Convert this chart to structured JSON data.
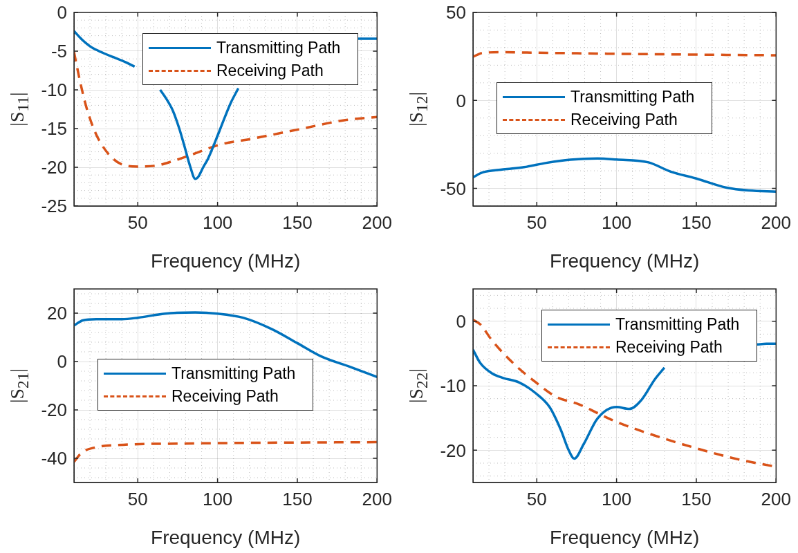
{
  "chart_data": [
    {
      "type": "line",
      "xlabel": "Frequency (MHz)",
      "ylabel": "|S$_{11}$|",
      "xlim": [
        10,
        200
      ],
      "xticks": [
        50,
        100,
        150,
        200
      ],
      "ylim": [
        -25,
        0
      ],
      "yticks": [
        -25,
        -20,
        -15,
        -10,
        -5,
        0
      ],
      "grid": true,
      "legend": "top",
      "series": [
        {
          "name": "Transmitting Path",
          "color": "#0072bd",
          "line_style": "solid",
          "x": [
            10,
            15,
            21,
            28,
            35,
            42,
            48,
            57,
            64,
            68,
            72,
            76,
            79,
            83,
            86,
            88,
            91,
            94,
            101,
            108,
            113,
            150,
            188,
            194,
            200
          ],
          "values": [
            -2.4,
            -3.5,
            -4.5,
            -5.2,
            -5.8,
            -6.4,
            -7.0,
            null,
            -10.0,
            -11.2,
            -12.7,
            -15.0,
            -17.1,
            -20.0,
            -21.5,
            -21.2,
            -20.0,
            -18.9,
            -15.4,
            -11.8,
            -9.8,
            null,
            -3.4,
            -3.4,
            -3.4
          ]
        },
        {
          "name": "Receiving Path",
          "color": "#d95319",
          "line_style": "dashed",
          "x": [
            10,
            14,
            18,
            24,
            33,
            41,
            50,
            61,
            72,
            86,
            101,
            122,
            151,
            180,
            200
          ],
          "values": [
            -5.1,
            -9.1,
            -12.4,
            -15.8,
            -18.6,
            -19.7,
            -19.9,
            -19.8,
            -19.2,
            -18.2,
            -17.1,
            -16.3,
            -15.1,
            -13.9,
            -13.5
          ]
        }
      ]
    },
    {
      "type": "line",
      "xlabel": "Frequency (MHz)",
      "ylabel": "|S$_{12}$|",
      "xlim": [
        10,
        200
      ],
      "xticks": [
        50,
        100,
        150,
        200
      ],
      "ylim": [
        -60,
        50
      ],
      "yticks": [
        -50,
        0,
        50
      ],
      "grid": true,
      "legend": "center",
      "series": [
        {
          "name": "Transmitting Path",
          "color": "#0072bd",
          "line_style": "solid",
          "x": [
            10,
            16,
            29,
            42,
            56,
            71,
            88,
            100,
            120,
            134,
            150,
            169,
            183,
            200
          ],
          "values": [
            -43.7,
            -40.9,
            -39.2,
            -37.9,
            -35.5,
            -33.7,
            -33.0,
            -33.6,
            -35.2,
            -40.5,
            -44.4,
            -49.6,
            -51.2,
            -51.8
          ]
        },
        {
          "name": "Receiving Path",
          "color": "#d95319",
          "line_style": "dashed",
          "x": [
            10,
            16,
            29,
            50,
            100,
            150,
            192,
            200
          ],
          "values": [
            24.8,
            27,
            27.4,
            27.1,
            26.5,
            26,
            25.7,
            25.6
          ]
        }
      ]
    },
    {
      "type": "line",
      "xlabel": "Frequency (MHz)",
      "ylabel": "|S$_{21}$|",
      "xlim": [
        10,
        200
      ],
      "xticks": [
        50,
        100,
        150,
        200
      ],
      "ylim": [
        -50,
        30
      ],
      "yticks": [
        -40,
        -20,
        0,
        20
      ],
      "grid": true,
      "legend": "center",
      "series": [
        {
          "name": "Transmitting Path",
          "color": "#0072bd",
          "line_style": "solid",
          "x": [
            10,
            15.5,
            24,
            40,
            50,
            67,
            86,
            100,
            116,
            134,
            150,
            165,
            183,
            200
          ],
          "values": [
            14.9,
            17,
            17.5,
            17.5,
            18.1,
            19.8,
            20.3,
            19.8,
            18.1,
            13.4,
            7.6,
            2.1,
            -2.2,
            -6.4
          ]
        },
        {
          "name": "Receiving Path",
          "color": "#d95319",
          "line_style": "dashed",
          "x": [
            10,
            14.8,
            22.7,
            41,
            79,
            122,
            200
          ],
          "values": [
            -41.5,
            -37.7,
            -35.6,
            -34.4,
            -33.9,
            -33.6,
            -33.3
          ]
        }
      ]
    },
    {
      "type": "line",
      "xlabel": "Frequency (MHz)",
      "ylabel": "|S$_{22}$|",
      "xlim": [
        10,
        200
      ],
      "xticks": [
        50,
        100,
        150,
        200
      ],
      "ylim": [
        -25,
        5
      ],
      "yticks": [
        -20,
        -10,
        0
      ],
      "grid": true,
      "legend": "top",
      "series": [
        {
          "name": "Transmitting Path",
          "color": "#0072bd",
          "line_style": "solid",
          "x": [
            10,
            14.6,
            22,
            29,
            39,
            49,
            58,
            65,
            70,
            73.5,
            79.5,
            88,
            100,
            108,
            115.6,
            124,
            130,
            160,
            188,
            194,
            200
          ],
          "values": [
            -4.4,
            -6.5,
            -8.1,
            -8.8,
            -9.5,
            -11.1,
            -13.3,
            -16.8,
            -20,
            -21.3,
            -19,
            -15.1,
            -13.3,
            -13.6,
            -12.2,
            -9,
            -7.2,
            null,
            -3.6,
            -3.5,
            -3.5
          ]
        },
        {
          "name": "Receiving Path",
          "color": "#d95319",
          "line_style": "dashed",
          "x": [
            10,
            14.6,
            22,
            36,
            49,
            62,
            76.6,
            91,
            100,
            120,
            150,
            176,
            198.6
          ],
          "values": [
            0.2,
            -0.5,
            -3,
            -6.7,
            -9.4,
            -11.7,
            -12.9,
            -14.6,
            -15.6,
            -17.4,
            -19.7,
            -21.4,
            -22.5
          ]
        }
      ]
    }
  ]
}
